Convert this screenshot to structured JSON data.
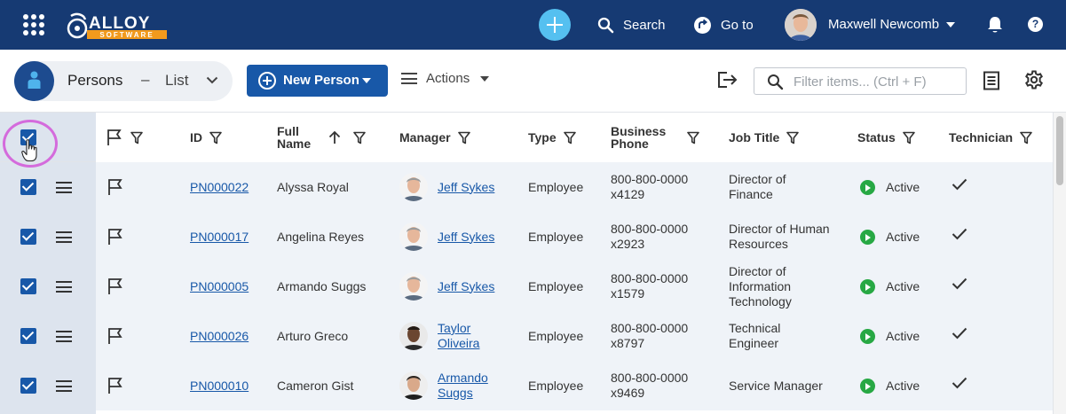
{
  "topbar": {
    "logo_text": "ALLOY",
    "logo_sub": "SOFTWARE",
    "search_label": "Search",
    "goto_label": "Go to",
    "user_name": "Maxwell Newcomb"
  },
  "toolbar": {
    "object_title": "Persons",
    "separator": "–",
    "view_name": "List",
    "new_button_label": "New Person",
    "actions_label": "Actions",
    "filter_placeholder": "Filter items... (Ctrl + F)"
  },
  "columns": {
    "id": "ID",
    "full_name": "Full Name",
    "manager": "Manager",
    "type": "Type",
    "business_phone": "Business Phone",
    "job_title": "Job Title",
    "status": "Status",
    "technician": "Technician"
  },
  "rows": [
    {
      "id": "PN000022",
      "full_name": "Alyssa Royal",
      "manager": "Jeff Sykes",
      "manager_avatar": "man-gray-hair",
      "type": "Employee",
      "phone": "800-800-0000 x4129",
      "job_title": "Director of Finance",
      "status": "Active",
      "technician": true
    },
    {
      "id": "PN000017",
      "full_name": "Angelina Reyes",
      "manager": "Jeff Sykes",
      "manager_avatar": "man-gray-hair",
      "type": "Employee",
      "phone": "800-800-0000 x2923",
      "job_title": "Director of Human Resources",
      "status": "Active",
      "technician": true
    },
    {
      "id": "PN000005",
      "full_name": "Armando Suggs",
      "manager": "Jeff Sykes",
      "manager_avatar": "man-gray-hair",
      "type": "Employee",
      "phone": "800-800-0000 x1579",
      "job_title": "Director of Information Technology",
      "status": "Active",
      "technician": true
    },
    {
      "id": "PN000026",
      "full_name": "Arturo Greco",
      "manager": "Taylor Oliveira",
      "manager_avatar": "man-dark-skin",
      "type": "Employee",
      "phone": "800-800-0000 x8797",
      "job_title": "Technical Engineer",
      "status": "Active",
      "technician": true
    },
    {
      "id": "PN000010",
      "full_name": "Cameron Gist",
      "manager": "Armando Suggs",
      "manager_avatar": "man-dark-hair",
      "type": "Employee",
      "phone": "800-800-0000 x9469",
      "job_title": "Service Manager",
      "status": "Active",
      "technician": true
    }
  ],
  "colors": {
    "topbar_bg": "#163a73",
    "accent": "#1858a8",
    "add_button": "#55c0f0",
    "status_active": "#27a844",
    "highlight_ring": "#d46bdc"
  }
}
